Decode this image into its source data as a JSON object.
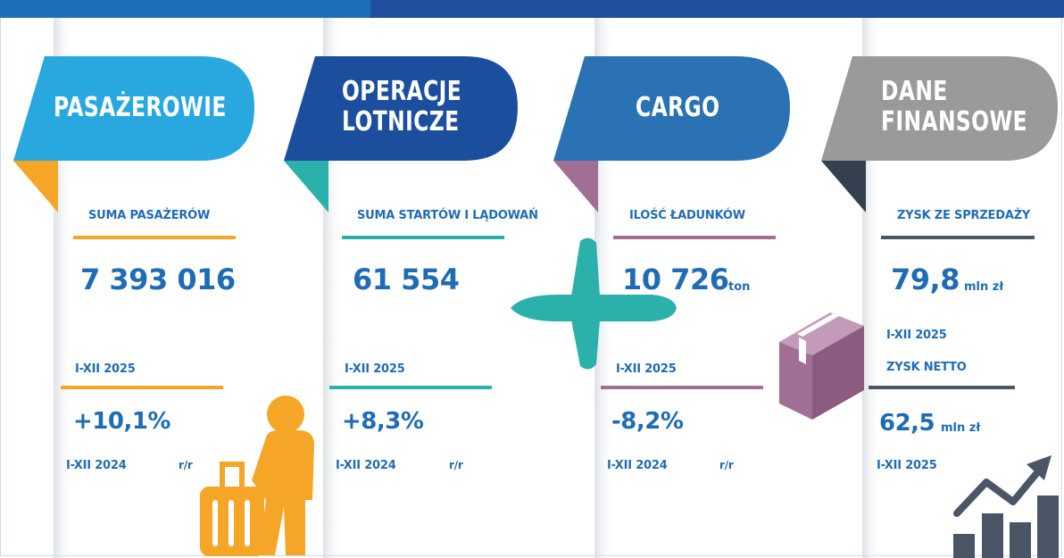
{
  "colors": {
    "pasazerowie": "#29a8e0",
    "operacje": "#1b4f9e",
    "cargo": "#2a72b4",
    "finanse": "#9a9a9a",
    "orange": "#f5a627",
    "teal": "#2bb0ab",
    "purple": "#a06f93",
    "navy": "#4a5566",
    "text": "#1f6cb5"
  },
  "panels": [
    {
      "title_line1": "PASAŻEROWIE",
      "title_line2": "",
      "metric_label": "SUMA PASAŻERÓW",
      "metric_value": "7 393 016",
      "metric_unit": "",
      "period": "I-XII 2025",
      "change": "+10,1%",
      "compare_period": "I-XII 2024",
      "change_unit": "r/r",
      "icon": "traveler-with-suitcase-icon"
    },
    {
      "title_line1": "OPERACJE",
      "title_line2": "LOTNICZE",
      "metric_label": "SUMA STARTÓW I LĄDOWAŃ",
      "metric_value": "61 554",
      "metric_unit": "",
      "period": "I-XII 2025",
      "change": "+8,3%",
      "compare_period": "I-XII 2024",
      "change_unit": "r/r",
      "icon": "airplane-icon"
    },
    {
      "title_line1": "CARGO",
      "title_line2": "",
      "metric_label": "ILOŚĆ ŁADUNKÓW",
      "metric_value": "10 726",
      "metric_unit": "ton",
      "period": "I-XII 2025",
      "change": "-8,2%",
      "compare_period": "I-XII 2024",
      "change_unit": "r/r",
      "icon": "cargo-box-icon"
    },
    {
      "title_line1": "DANE",
      "title_line2": "FINANSOWE",
      "metric_label": "ZYSK ZE SPRZEDAŻY",
      "metric_value": "79,8",
      "metric_unit": "mln zł",
      "period": "I-XII 2025",
      "second_label": "ZYSK NETTO",
      "second_value": "62,5",
      "second_unit": "mln zł",
      "second_period": "I-XII 2025",
      "icon": "growth-chart-icon"
    }
  ]
}
